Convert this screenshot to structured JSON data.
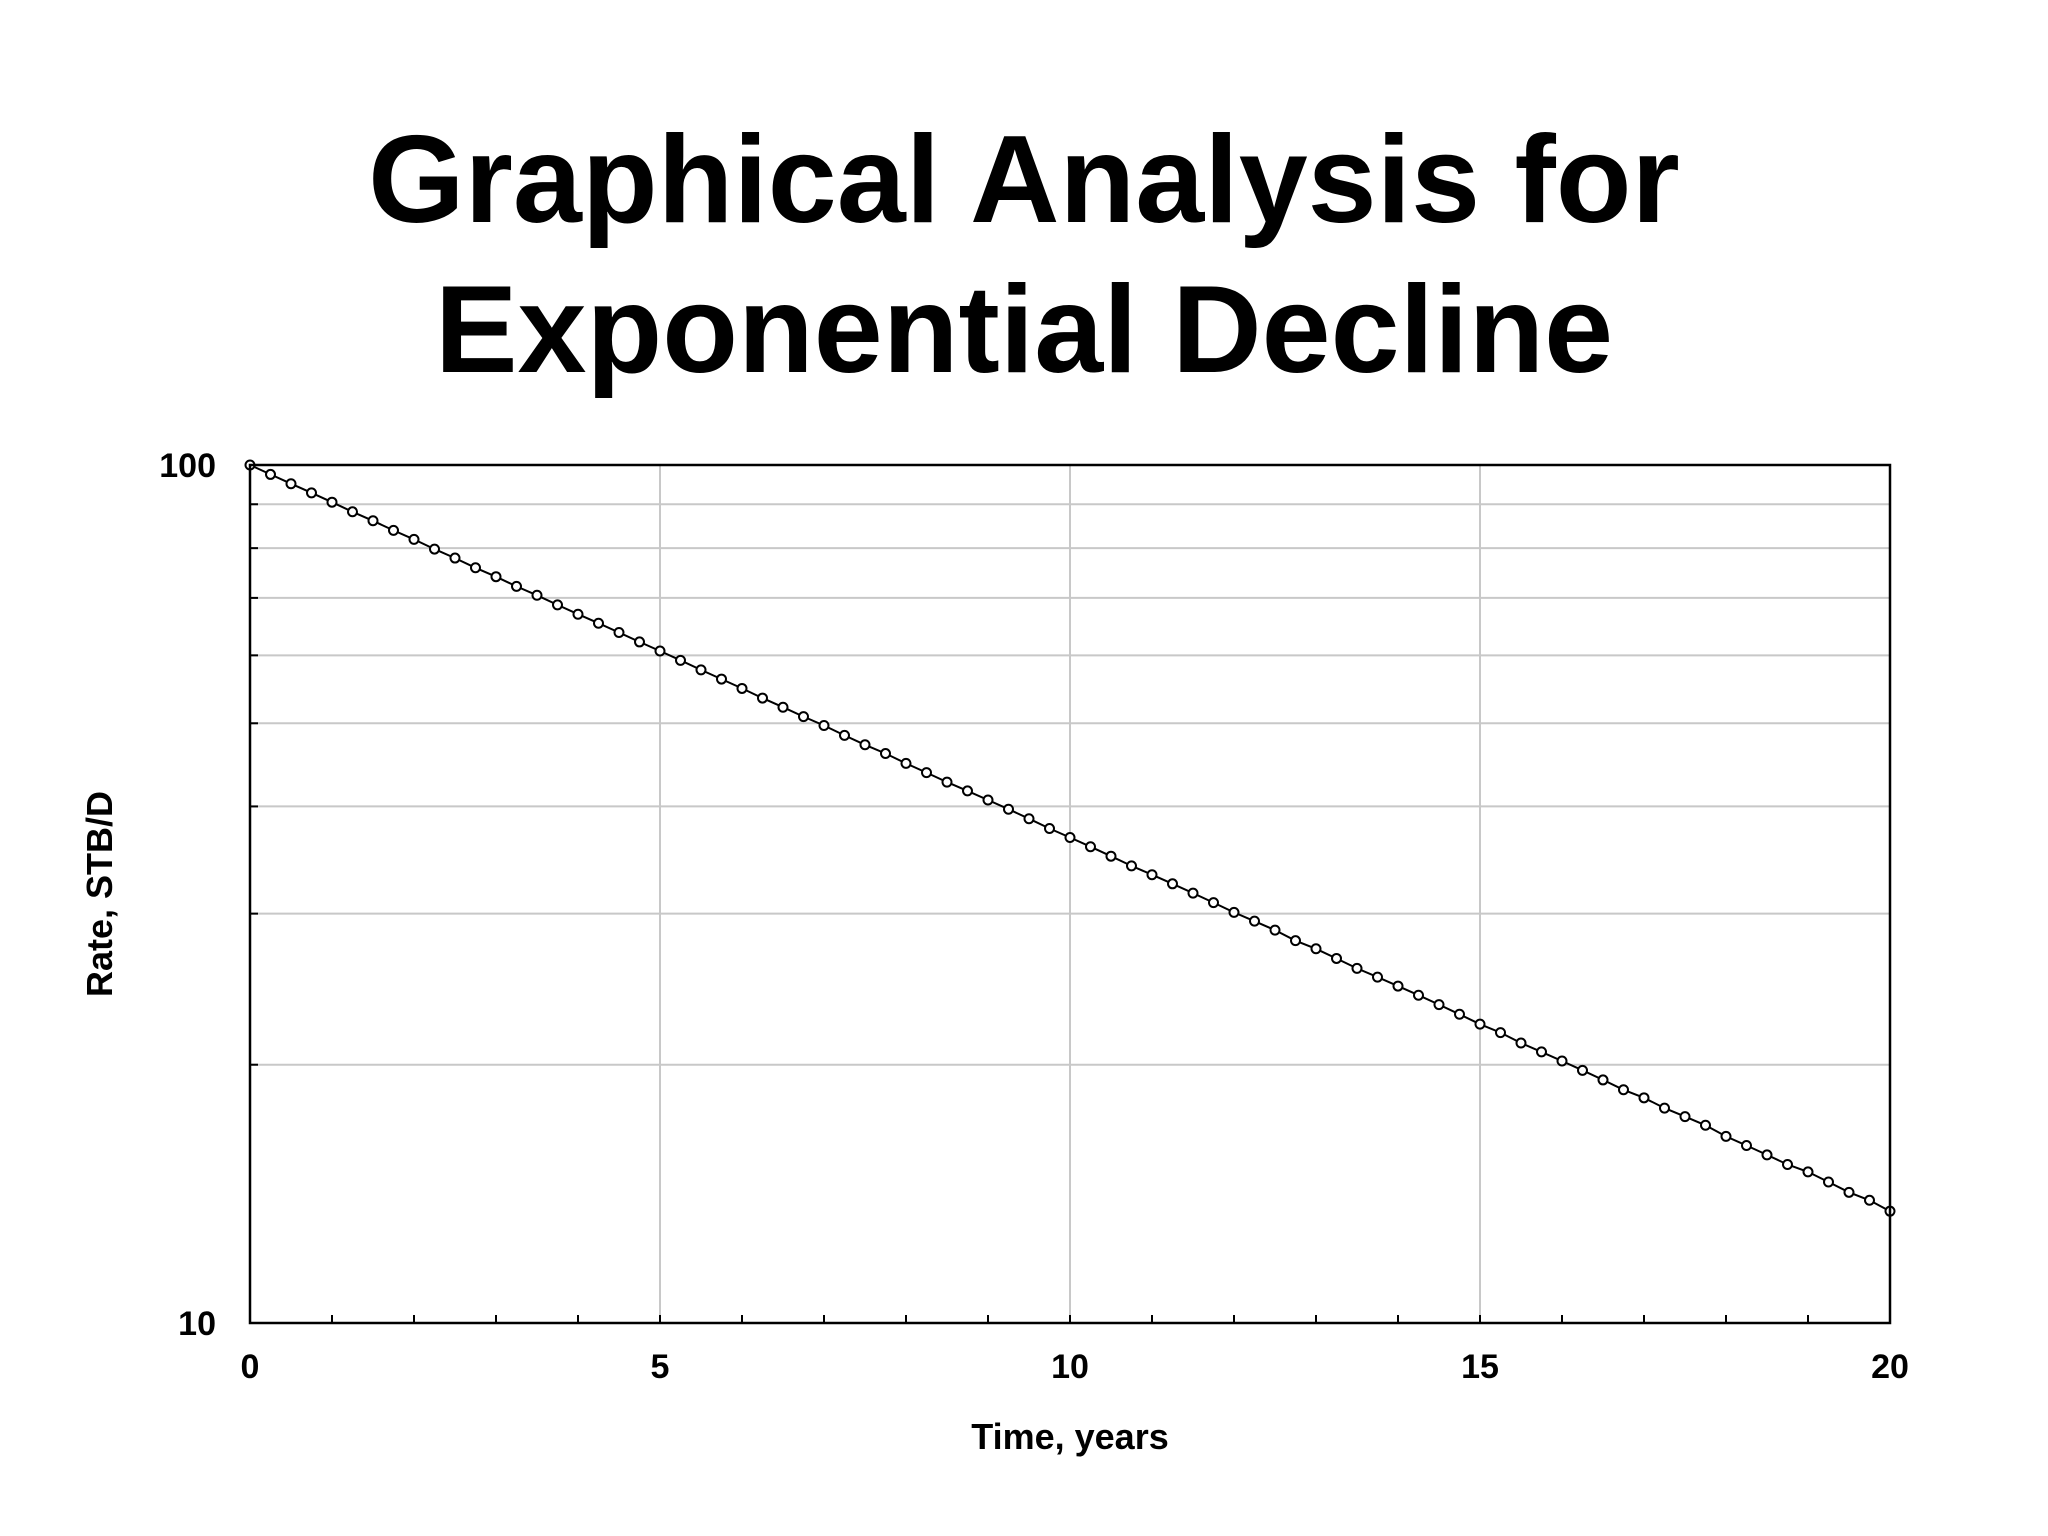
{
  "slide": {
    "title_line1": "Graphical Analysis for",
    "title_line2": "Exponential Decline"
  },
  "chart_data": {
    "type": "scatter",
    "title": "Graphical Analysis for Exponential Decline",
    "xlabel": "Time, years",
    "ylabel": "Rate, STB/D",
    "xlim": [
      0,
      20
    ],
    "ylim": [
      10,
      100
    ],
    "yscale": "log",
    "grid": true,
    "x_ticks": [
      0,
      5,
      10,
      15,
      20
    ],
    "x_tick_labels": [
      "0",
      "5",
      "10",
      "15",
      "20"
    ],
    "y_ticks": [
      10,
      100
    ],
    "y_tick_labels": [
      "10",
      "100"
    ],
    "series": [
      {
        "marker": "open-circle",
        "line": true,
        "color": "#000000",
        "points": [
          {
            "x": 0.0,
            "y": 100.0
          },
          {
            "x": 0.25,
            "y": 97.5
          },
          {
            "x": 0.5,
            "y": 95.1
          },
          {
            "x": 0.75,
            "y": 92.8
          },
          {
            "x": 1.0,
            "y": 90.5
          },
          {
            "x": 1.25,
            "y": 88.2
          },
          {
            "x": 1.5,
            "y": 86.1
          },
          {
            "x": 1.75,
            "y": 83.9
          },
          {
            "x": 2.0,
            "y": 81.9
          },
          {
            "x": 2.25,
            "y": 79.8
          },
          {
            "x": 2.5,
            "y": 77.9
          },
          {
            "x": 2.75,
            "y": 75.9
          },
          {
            "x": 3.0,
            "y": 74.1
          },
          {
            "x": 3.25,
            "y": 72.2
          },
          {
            "x": 3.5,
            "y": 70.5
          },
          {
            "x": 3.75,
            "y": 68.7
          },
          {
            "x": 4.0,
            "y": 67.0
          },
          {
            "x": 4.25,
            "y": 65.4
          },
          {
            "x": 4.5,
            "y": 63.8
          },
          {
            "x": 4.75,
            "y": 62.2
          },
          {
            "x": 5.0,
            "y": 60.7
          },
          {
            "x": 5.25,
            "y": 59.2
          },
          {
            "x": 5.5,
            "y": 57.7
          },
          {
            "x": 5.75,
            "y": 56.3
          },
          {
            "x": 6.0,
            "y": 54.9
          },
          {
            "x": 6.25,
            "y": 53.5
          },
          {
            "x": 6.5,
            "y": 52.2
          },
          {
            "x": 6.75,
            "y": 50.9
          },
          {
            "x": 7.0,
            "y": 49.7
          },
          {
            "x": 7.25,
            "y": 48.4
          },
          {
            "x": 7.5,
            "y": 47.2
          },
          {
            "x": 7.75,
            "y": 46.1
          },
          {
            "x": 8.0,
            "y": 44.9
          },
          {
            "x": 8.25,
            "y": 43.8
          },
          {
            "x": 8.5,
            "y": 42.7
          },
          {
            "x": 8.75,
            "y": 41.7
          },
          {
            "x": 9.0,
            "y": 40.7
          },
          {
            "x": 9.25,
            "y": 39.7
          },
          {
            "x": 9.5,
            "y": 38.7
          },
          {
            "x": 9.75,
            "y": 37.7
          },
          {
            "x": 10.0,
            "y": 36.8
          },
          {
            "x": 10.25,
            "y": 35.9
          },
          {
            "x": 10.5,
            "y": 35.0
          },
          {
            "x": 10.75,
            "y": 34.1
          },
          {
            "x": 11.0,
            "y": 33.3
          },
          {
            "x": 11.25,
            "y": 32.5
          },
          {
            "x": 11.5,
            "y": 31.7
          },
          {
            "x": 11.75,
            "y": 30.9
          },
          {
            "x": 12.0,
            "y": 30.1
          },
          {
            "x": 12.25,
            "y": 29.4
          },
          {
            "x": 12.5,
            "y": 28.7
          },
          {
            "x": 12.75,
            "y": 27.9
          },
          {
            "x": 13.0,
            "y": 27.3
          },
          {
            "x": 13.25,
            "y": 26.6
          },
          {
            "x": 13.5,
            "y": 25.9
          },
          {
            "x": 13.75,
            "y": 25.3
          },
          {
            "x": 14.0,
            "y": 24.7
          },
          {
            "x": 14.25,
            "y": 24.1
          },
          {
            "x": 14.5,
            "y": 23.5
          },
          {
            "x": 14.75,
            "y": 22.9
          },
          {
            "x": 15.0,
            "y": 22.3
          },
          {
            "x": 15.25,
            "y": 21.8
          },
          {
            "x": 15.5,
            "y": 21.2
          },
          {
            "x": 15.75,
            "y": 20.7
          },
          {
            "x": 16.0,
            "y": 20.2
          },
          {
            "x": 16.25,
            "y": 19.7
          },
          {
            "x": 16.5,
            "y": 19.2
          },
          {
            "x": 16.75,
            "y": 18.7
          },
          {
            "x": 17.0,
            "y": 18.3
          },
          {
            "x": 17.25,
            "y": 17.8
          },
          {
            "x": 17.5,
            "y": 17.4
          },
          {
            "x": 17.75,
            "y": 17.0
          },
          {
            "x": 18.0,
            "y": 16.5
          },
          {
            "x": 18.25,
            "y": 16.1
          },
          {
            "x": 18.5,
            "y": 15.7
          },
          {
            "x": 18.75,
            "y": 15.3
          },
          {
            "x": 19.0,
            "y": 15.0
          },
          {
            "x": 19.25,
            "y": 14.6
          },
          {
            "x": 19.5,
            "y": 14.2
          },
          {
            "x": 19.75,
            "y": 13.9
          },
          {
            "x": 20.0,
            "y": 13.5
          }
        ]
      }
    ]
  }
}
